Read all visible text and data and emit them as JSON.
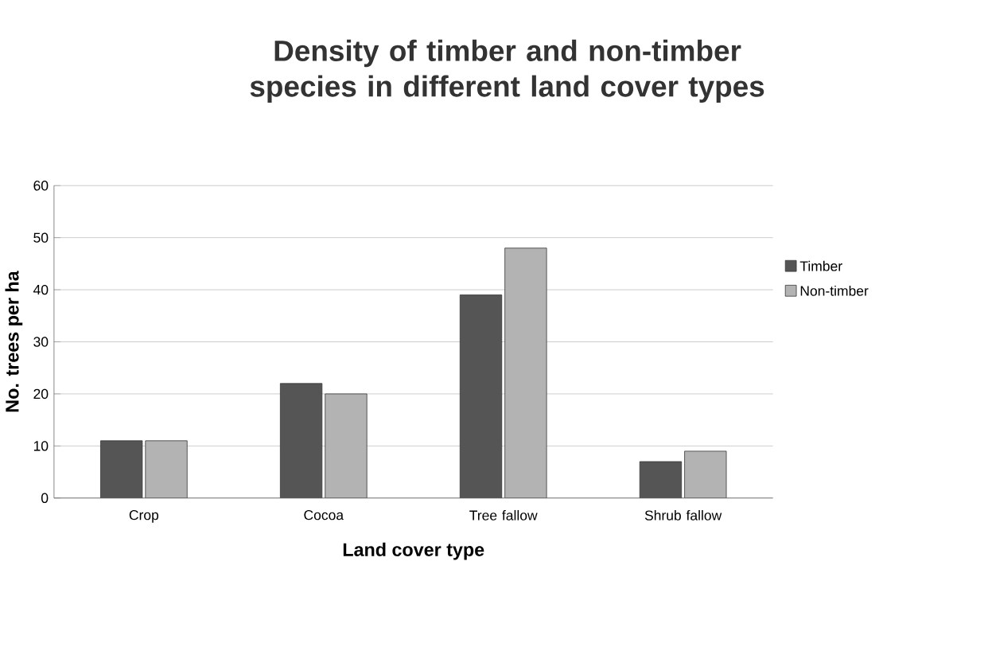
{
  "chart_data": {
    "type": "bar",
    "title": "Density of timber and non-timber species in different land cover types",
    "xlabel": "Land cover type",
    "ylabel": "No. trees per ha",
    "categories": [
      "Crop",
      "Cocoa",
      "Tree fallow",
      "Shrub fallow"
    ],
    "series": [
      {
        "name": "Timber",
        "color": "#555555",
        "values": [
          11,
          22,
          39,
          7
        ]
      },
      {
        "name": "Non-timber",
        "color": "#b3b3b3",
        "values": [
          11,
          20,
          48,
          9
        ]
      }
    ],
    "ylim": [
      0,
      60
    ],
    "yticks": [
      0,
      10,
      20,
      30,
      40,
      50,
      60
    ],
    "grid": "y",
    "legend": "right"
  }
}
